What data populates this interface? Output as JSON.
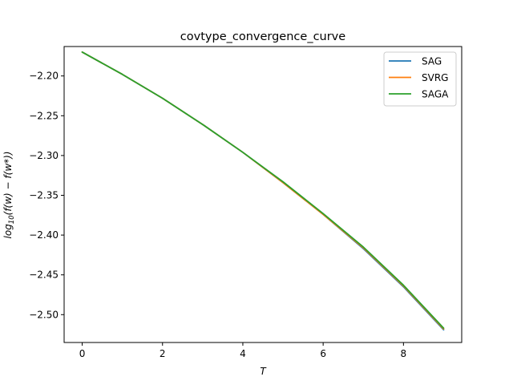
{
  "chart_data": {
    "type": "line",
    "title": "covtype_convergence_curve",
    "xlabel": "T",
    "ylabel_main": "log",
    "ylabel_sub": "10",
    "ylabel_rest": "(f(w) − f(w*))",
    "xlim": [
      -0.45,
      9.45
    ],
    "ylim": [
      -2.535,
      -2.163
    ],
    "xticks": [
      0,
      2,
      4,
      6,
      8
    ],
    "yticks": [
      -2.2,
      -2.25,
      -2.3,
      -2.35,
      -2.4,
      -2.45,
      -2.5
    ],
    "ytick_labels": [
      "−2.20",
      "−2.25",
      "−2.30",
      "−2.35",
      "−2.40",
      "−2.45",
      "−2.50"
    ],
    "x": [
      0,
      1,
      2,
      3,
      4,
      5,
      6,
      7,
      8,
      9
    ],
    "series": [
      {
        "name": "SAG",
        "color": "#1f77b4",
        "values": [
          -2.17,
          -2.198,
          -2.228,
          -2.261,
          -2.296,
          -2.334,
          -2.374,
          -2.417,
          -2.465,
          -2.519
        ]
      },
      {
        "name": "SVRG",
        "color": "#ff7f0e",
        "values": [
          -2.17,
          -2.198,
          -2.228,
          -2.261,
          -2.296,
          -2.334,
          -2.374,
          -2.416,
          -2.464,
          -2.518
        ]
      },
      {
        "name": "SAGA",
        "color": "#2ca02c",
        "values": [
          -2.17,
          -2.198,
          -2.228,
          -2.261,
          -2.296,
          -2.333,
          -2.373,
          -2.415,
          -2.463,
          -2.517
        ]
      }
    ],
    "legend_position": "top-right",
    "grid": false
  }
}
